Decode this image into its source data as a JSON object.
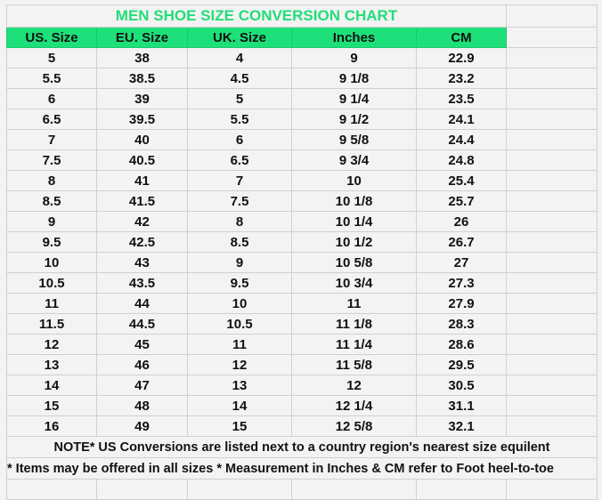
{
  "title": "MEN SHOE SIZE CONVERSION CHART",
  "colors": {
    "header_bg": "#1ee07a",
    "title_text": "#22dd77",
    "grid": "#d0d0d0"
  },
  "headers": [
    "US. Size",
    "EU. Size",
    "UK. Size",
    "Inches",
    "CM"
  ],
  "rows": [
    [
      "5",
      "38",
      "4",
      "9",
      "22.9"
    ],
    [
      "5.5",
      "38.5",
      "4.5",
      "9 1/8",
      "23.2"
    ],
    [
      "6",
      "39",
      "5",
      "9 1/4",
      "23.5"
    ],
    [
      "6.5",
      "39.5",
      "5.5",
      "9 1/2",
      "24.1"
    ],
    [
      "7",
      "40",
      "6",
      "9 5/8",
      "24.4"
    ],
    [
      "7.5",
      "40.5",
      "6.5",
      "9 3/4",
      "24.8"
    ],
    [
      "8",
      "41",
      "7",
      "10",
      "25.4"
    ],
    [
      "8.5",
      "41.5",
      "7.5",
      "10 1/8",
      "25.7"
    ],
    [
      "9",
      "42",
      "8",
      "10 1/4",
      "26"
    ],
    [
      "9.5",
      "42.5",
      "8.5",
      "10 1/2",
      "26.7"
    ],
    [
      "10",
      "43",
      "9",
      "10 5/8",
      "27"
    ],
    [
      "10.5",
      "43.5",
      "9.5",
      "10 3/4",
      "27.3"
    ],
    [
      "11",
      "44",
      "10",
      "11",
      "27.9"
    ],
    [
      "11.5",
      "44.5",
      "10.5",
      "11 1/8",
      "28.3"
    ],
    [
      "12",
      "45",
      "11",
      "11 1/4",
      "28.6"
    ],
    [
      "13",
      "46",
      "12",
      "11 5/8",
      "29.5"
    ],
    [
      "14",
      "47",
      "13",
      "12",
      "30.5"
    ],
    [
      "15",
      "48",
      "14",
      "12 1/4",
      "31.1"
    ],
    [
      "16",
      "49",
      "15",
      "12 5/8",
      "32.1"
    ]
  ],
  "notes": [
    "NOTE* US Conversions are listed next to a country region's nearest size equilent",
    "* Items may be offered in all sizes * Measurement in Inches & CM refer to Foot heel-to-toe"
  ]
}
